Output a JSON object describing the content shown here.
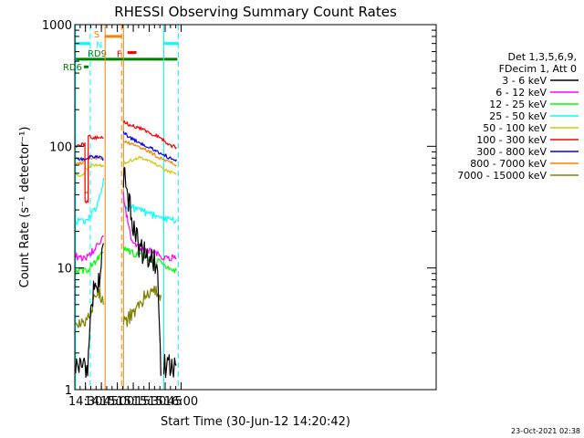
{
  "chart_data": {
    "type": "line",
    "title": "RHESSI Observing Summary Count Rates",
    "xlabel": "Start Time (30-Jun-12 14:20:42)",
    "ylabel": "Count Rate (s⁻¹ detector⁻¹)",
    "yscale": "log",
    "ylim": [
      1,
      1000
    ],
    "xlim_min": [
      860,
      1200
    ],
    "x_unit": "minutes since 00:00 UT",
    "x_ticks": [
      {
        "t": 870,
        "label": "14:30"
      },
      {
        "t": 885,
        "label": "14:45"
      },
      {
        "t": 900,
        "label": "15:00"
      },
      {
        "t": 915,
        "label": "15:15"
      },
      {
        "t": 930,
        "label": "15:30"
      },
      {
        "t": 945,
        "label": "15:45"
      },
      {
        "t": 960,
        "label": "16:00"
      }
    ],
    "y_ticks": [
      {
        "v": 1,
        "label": "1"
      },
      {
        "v": 10,
        "label": "10"
      },
      {
        "v": 100,
        "label": "100"
      },
      {
        "v": 1000,
        "label": "1000"
      }
    ],
    "legend_header": [
      "Det 1,3,5,6,9,",
      "FDecim 1, Att 0"
    ],
    "series": [
      {
        "name": "3 - 6 keV",
        "color": "#000000",
        "segments": [
          {
            "t": [
              860.7,
              868,
              872,
              876,
              880,
              884,
              887.0
            ],
            "v": [
              1.6,
              1.5,
              1.6,
              5.5,
              7.0,
              8.5,
              16.0
            ]
          },
          {
            "t": [
              905.8,
              907,
              909,
              912,
              915,
              918,
              922,
              928,
              934,
              938,
              941.0
            ],
            "v": [
              50,
              62,
              45,
              30,
              22,
              17,
              14,
              13,
              12,
              9,
              1.3
            ]
          },
          {
            "t": [
              943.7,
              948,
              952,
              955.7
            ],
            "v": [
              1.5,
              1.6,
              1.5,
              1.6
            ]
          }
        ]
      },
      {
        "name": "6 - 12 keV",
        "color": "#ff00ff",
        "segments": [
          {
            "t": [
              860.7,
              865,
              870,
              874,
              877,
              880,
              884,
              887.0
            ],
            "v": [
              12.5,
              12.0,
              12.0,
              13,
              14,
              15,
              16.5,
              18
            ]
          },
          {
            "t": [
              905.8,
              907,
              910,
              913,
              916,
              920,
              926,
              932,
              938,
              944,
              950,
              955.7
            ],
            "v": [
              40,
              32,
              24,
              18,
              16,
              15,
              14,
              14,
              13,
              12,
              12,
              12
            ]
          }
        ]
      },
      {
        "name": "12 - 25 keV",
        "color": "#00ff00",
        "segments": [
          {
            "t": [
              860.7,
              866,
              872,
              876,
              880,
              884,
              887.0
            ],
            "v": [
              9.5,
              9.5,
              9.5,
              10.5,
              11.5,
              12.5,
              13.5
            ]
          },
          {
            "t": [
              905.8,
              910,
              916,
              922,
              928,
              934,
              940,
              946,
              952,
              955.7
            ],
            "v": [
              15,
              14,
              13,
              12.5,
              12,
              11.5,
              11,
              10,
              9.5,
              9.5
            ]
          }
        ]
      },
      {
        "name": "25 - 50 keV",
        "color": "#00ffff",
        "segments": [
          {
            "t": [
              860.7,
              866,
              872,
              876,
              880,
              883,
              885.5,
              887.0
            ],
            "v": [
              24,
              24,
              25,
              28,
              31,
              36,
              45,
              55
            ]
          },
          {
            "t": [
              905.8,
              908,
              912,
              916,
              920,
              924,
              930,
              936,
              942,
              948,
              955.7
            ],
            "v": [
              33,
              32,
              31,
              31,
              30,
              29,
              28,
              27,
              25,
              25,
              25
            ]
          }
        ]
      },
      {
        "name": "50 - 100 keV",
        "color": "#cccc00",
        "segments": [
          {
            "t": [
              860.7,
              865,
              869.5,
              869.6,
              872.5,
              872.6,
              876,
              880,
              884,
              887.0
            ],
            "v": [
              58,
              58,
              60,
              65,
              66,
              68,
              70,
              70,
              70,
              68
            ]
          },
          {
            "t": [
              905.8,
              910,
              916,
              920,
              924,
              930,
              936,
              942,
              948,
              955.7
            ],
            "v": [
              72,
              75,
              78,
              82,
              80,
              76,
              72,
              66,
              62,
              60
            ]
          }
        ]
      },
      {
        "name": "100 - 300 keV",
        "color": "#ff0000",
        "segments": [
          {
            "t": [
              860.7,
              865,
              869.5,
              869.6,
              872.5,
              872.6,
              880,
              887.0
            ],
            "v": [
              100,
              102,
              105,
              35,
              35,
              120,
              118,
              118
            ]
          },
          {
            "t": [
              905.8,
              910,
              916,
              922,
              928,
              934,
              940,
              946,
              952,
              955.7
            ],
            "v": [
              160,
              152,
              145,
              140,
              132,
              125,
              118,
              108,
              100,
              98
            ]
          }
        ]
      },
      {
        "name": "300 - 800 keV",
        "color": "#0000ff",
        "segments": [
          {
            "t": [
              860.7,
              866,
              872,
              876,
              880,
              884,
              887.0
            ],
            "v": [
              78,
              78,
              80,
              82,
              82,
              80,
              78
            ]
          },
          {
            "t": [
              905.8,
              908,
              914,
              920,
              926,
              932,
              938,
              944,
              950,
              955.7
            ],
            "v": [
              132,
              125,
              115,
              108,
              102,
              96,
              90,
              85,
              80,
              78
            ]
          }
        ]
      },
      {
        "name": "800 - 7000 keV",
        "color": "#ff8000",
        "segments": [
          {
            "t": [
              860.7,
              866,
              869.5,
              869.6,
              872.5,
              872.6,
              880,
              887.0
            ],
            "v": [
              72,
              73,
              75,
              42,
              42,
              80,
              80,
              80
            ]
          },
          {
            "t": [
              905.8,
              910,
              916,
              922,
              928,
              934,
              940,
              946,
              952,
              955.7
            ],
            "v": [
              112,
              108,
              102,
              98,
              92,
              86,
              80,
              76,
              72,
              70
            ]
          }
        ]
      },
      {
        "name": "7000 - 15000 keV",
        "color": "#808000",
        "segments": [
          {
            "t": [
              860.7,
              866,
              869,
              872,
              875,
              878,
              882,
              885,
              887.0
            ],
            "v": [
              3.5,
              3.5,
              3.5,
              4.0,
              4.5,
              5.5,
              6.5,
              5.5,
              5.0
            ]
          },
          {
            "t": [
              905.8,
              910,
              914,
              918,
              922,
              926,
              930,
              934,
              938,
              941.0
            ],
            "v": [
              3.5,
              3.8,
              4.2,
              4.8,
              5.3,
              5.8,
              6.3,
              6.8,
              6.5,
              6.0
            ]
          }
        ]
      }
    ],
    "annotations": [
      {
        "text": "N",
        "color": "#00ffff",
        "segments": [
          [
            860.7,
            874.5
          ],
          [
            943.7,
            957.4
          ]
        ],
        "level": 700
      },
      {
        "text": "S",
        "color": "#ff8000",
        "segments": [
          [
            888.5,
            904
          ]
        ],
        "level": 800
      },
      {
        "text": "F",
        "color": "#ff0000",
        "segments": [
          [
            909.5,
            918
          ]
        ],
        "level": 590
      },
      {
        "text": "RD6",
        "color": "#008000",
        "segments": [
          [
            868.5,
            873
          ]
        ],
        "level": 450
      },
      {
        "text": "RD9",
        "color": "#008000",
        "segments": [
          [
            860.7,
            956.5
          ]
        ],
        "level": 520
      }
    ],
    "vertical_lines": [
      {
        "t": 860.7,
        "color": "#00ffff",
        "style": "solid"
      },
      {
        "t": 874.5,
        "color": "#00ffff",
        "style": "dashed"
      },
      {
        "t": 888.5,
        "color": "#ff8000",
        "style": "solid"
      },
      {
        "t": 904,
        "color": "#ff8000",
        "style": "dashed"
      },
      {
        "t": 905.8,
        "color": "#ff8000",
        "style": "solid"
      },
      {
        "t": 943.7,
        "color": "#00ffff",
        "style": "solid"
      },
      {
        "t": 957.4,
        "color": "#00ffff",
        "style": "dashed"
      }
    ],
    "footer_date": "23-Oct-2021 02:38"
  }
}
